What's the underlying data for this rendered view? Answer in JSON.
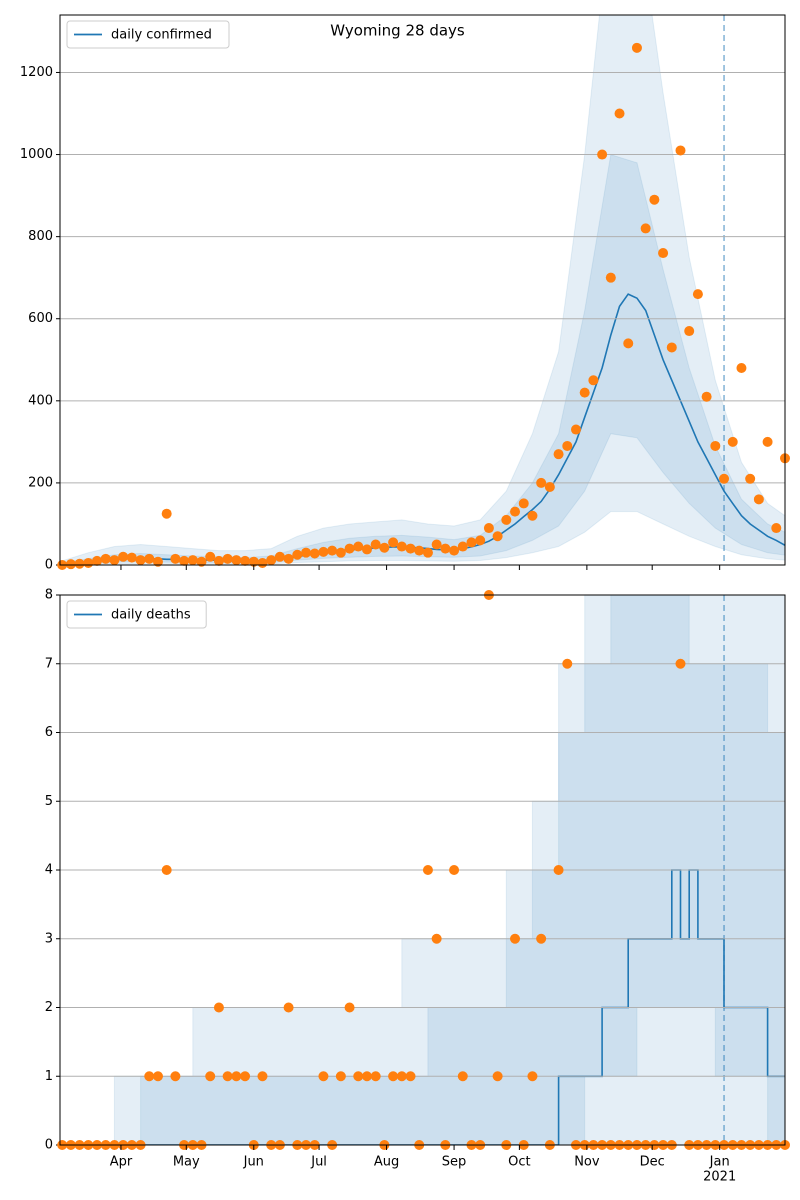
{
  "chart_data": [
    {
      "type": "line",
      "title": "Wyoming 28 days",
      "xlim": [
        3,
        336
      ],
      "ylim": [
        0,
        1340
      ],
      "yticks": [
        0,
        200,
        400,
        600,
        800,
        1000,
        1200
      ],
      "xticks": [
        {
          "value": 31,
          "label": "Apr"
        },
        {
          "value": 61,
          "label": "May"
        },
        {
          "value": 92,
          "label": "Jun"
        },
        {
          "value": 122,
          "label": "Jul"
        },
        {
          "value": 153,
          "label": "Aug"
        },
        {
          "value": 184,
          "label": "Sep"
        },
        {
          "value": 214,
          "label": "Oct"
        },
        {
          "value": 245,
          "label": "Nov"
        },
        {
          "value": 275,
          "label": "Dec"
        },
        {
          "value": 306,
          "label": "Jan"
        }
      ],
      "show_xtick_labels": false,
      "grid": true,
      "legend": "upper left",
      "vline": 308,
      "step": false,
      "x": [
        4,
        8,
        12,
        16,
        20,
        24,
        28,
        32,
        36,
        40,
        44,
        48,
        52,
        56,
        60,
        64,
        68,
        72,
        76,
        80,
        84,
        88,
        92,
        96,
        100,
        104,
        108,
        112,
        116,
        120,
        124,
        128,
        132,
        136,
        140,
        144,
        148,
        152,
        156,
        160,
        164,
        168,
        172,
        176,
        180,
        184,
        188,
        192,
        196,
        200,
        204,
        208,
        212,
        216,
        220,
        224,
        228,
        232,
        236,
        240,
        244,
        248,
        252,
        256,
        260,
        264,
        268,
        272,
        276,
        280,
        284,
        288,
        292,
        296,
        300,
        304,
        308,
        312,
        316,
        320,
        324,
        328,
        332,
        336
      ],
      "series": [
        {
          "name": "daily confirmed",
          "color": "#1f77b4",
          "values": [
            2,
            4,
            6,
            8,
            10,
            12,
            14,
            15,
            16,
            16,
            15,
            15,
            14,
            14,
            13,
            12,
            12,
            12,
            11,
            11,
            10,
            10,
            10,
            11,
            12,
            14,
            17,
            20,
            24,
            27,
            30,
            32,
            35,
            37,
            38,
            40,
            42,
            43,
            44,
            44,
            43,
            42,
            40,
            38,
            37,
            38,
            40,
            44,
            50,
            58,
            70,
            85,
            100,
            118,
            135,
            155,
            185,
            220,
            260,
            300,
            360,
            420,
            480,
            560,
            630,
            660,
            650,
            620,
            560,
            500,
            450,
            400,
            350,
            300,
            260,
            220,
            180,
            150,
            120,
            100,
            85,
            70,
            60,
            48
          ]
        }
      ],
      "points": {
        "color": "#ff7f0e",
        "values": [
          0,
          2,
          3,
          5,
          10,
          15,
          12,
          20,
          18,
          12,
          15,
          8,
          125,
          15,
          10,
          12,
          8,
          20,
          10,
          15,
          12,
          10,
          8,
          5,
          12,
          20,
          15,
          25,
          30,
          28,
          32,
          35,
          30,
          40,
          45,
          38,
          50,
          42,
          55,
          45,
          40,
          35,
          30,
          50,
          40,
          35,
          45,
          55,
          60,
          90,
          70,
          110,
          130,
          150,
          120,
          200,
          190,
          270,
          290,
          330,
          420,
          450,
          1000,
          700,
          1100,
          540,
          1260,
          820,
          890,
          760,
          530,
          1010,
          570,
          660,
          410,
          290,
          210,
          300,
          480,
          210,
          160,
          300,
          90,
          260
        ]
      },
      "band_x": [
        4,
        16,
        28,
        40,
        52,
        64,
        76,
        88,
        100,
        112,
        124,
        136,
        148,
        160,
        172,
        184,
        196,
        208,
        220,
        232,
        244,
        256,
        268,
        280,
        292,
        304,
        316,
        328,
        336
      ],
      "bands": [
        {
          "color": "#1f77b4",
          "lower": [
            0,
            1,
            3,
            4,
            4,
            3,
            3,
            3,
            3,
            6,
            8,
            10,
            11,
            11,
            10,
            9,
            11,
            18,
            30,
            45,
            80,
            130,
            130,
            100,
            70,
            45,
            25,
            15,
            12
          ],
          "upper": [
            10,
            30,
            45,
            50,
            45,
            40,
            35,
            35,
            40,
            70,
            90,
            100,
            105,
            110,
            100,
            95,
            110,
            180,
            320,
            520,
            1000,
            1600,
            1600,
            1150,
            750,
            450,
            250,
            150,
            120
          ]
        },
        {
          "color": "#1f77b4",
          "lower": [
            1,
            4,
            7,
            8,
            7,
            6,
            6,
            5,
            6,
            12,
            16,
            19,
            21,
            22,
            20,
            19,
            22,
            35,
            60,
            95,
            180,
            320,
            310,
            225,
            150,
            90,
            50,
            30,
            24
          ],
          "upper": [
            5,
            15,
            25,
            28,
            25,
            22,
            20,
            18,
            22,
            40,
            55,
            65,
            70,
            72,
            68,
            62,
            72,
            120,
            200,
            320,
            620,
            1000,
            980,
            720,
            480,
            290,
            160,
            100,
            80
          ]
        }
      ]
    },
    {
      "type": "line",
      "xlim": [
        3,
        336
      ],
      "ylim": [
        0,
        8
      ],
      "yticks": [
        0,
        1,
        2,
        3,
        4,
        5,
        6,
        7,
        8
      ],
      "xticks": [
        {
          "value": 31,
          "label": "Apr"
        },
        {
          "value": 61,
          "label": "May"
        },
        {
          "value": 92,
          "label": "Jun"
        },
        {
          "value": 122,
          "label": "Jul"
        },
        {
          "value": 153,
          "label": "Aug"
        },
        {
          "value": 184,
          "label": "Sep"
        },
        {
          "value": 214,
          "label": "Oct"
        },
        {
          "value": 245,
          "label": "Nov"
        },
        {
          "value": 275,
          "label": "Dec"
        },
        {
          "value": 306,
          "label": "Jan"
        }
      ],
      "year_label": "2021",
      "show_xtick_labels": true,
      "grid": true,
      "legend": "upper left",
      "vline": 308,
      "step": true,
      "x": [
        4,
        8,
        12,
        16,
        20,
        24,
        28,
        32,
        36,
        40,
        44,
        48,
        52,
        56,
        60,
        64,
        68,
        72,
        76,
        80,
        84,
        88,
        92,
        96,
        100,
        104,
        108,
        112,
        116,
        120,
        124,
        128,
        132,
        136,
        140,
        144,
        148,
        152,
        156,
        160,
        164,
        168,
        172,
        176,
        180,
        184,
        188,
        192,
        196,
        200,
        204,
        208,
        212,
        216,
        220,
        224,
        228,
        232,
        236,
        240,
        244,
        248,
        252,
        256,
        260,
        264,
        268,
        272,
        276,
        280,
        284,
        288,
        292,
        296,
        300,
        304,
        308,
        312,
        316,
        320,
        324,
        328,
        332,
        336
      ],
      "series": [
        {
          "name": "daily deaths",
          "color": "#1f77b4",
          "values": [
            0,
            0,
            0,
            0,
            0,
            0,
            0,
            0,
            0,
            0,
            0,
            0,
            0,
            0,
            0,
            0,
            0,
            0,
            0,
            0,
            0,
            0,
            0,
            0,
            0,
            0,
            0,
            0,
            0,
            0,
            0,
            0,
            0,
            0,
            0,
            0,
            0,
            0,
            0,
            0,
            0,
            0,
            0,
            0,
            0,
            0,
            0,
            0,
            0,
            0,
            0,
            0,
            0,
            0,
            0,
            0,
            0,
            1,
            1,
            1,
            1,
            1,
            2,
            2,
            2,
            3,
            3,
            3,
            3,
            3,
            4,
            3,
            4,
            3,
            3,
            3,
            2,
            2,
            2,
            2,
            2,
            1,
            1,
            1
          ]
        }
      ],
      "points": {
        "color": "#ff7f0e",
        "values": [
          0,
          0,
          0,
          0,
          0,
          0,
          0,
          0,
          0,
          0,
          1,
          1,
          4,
          1,
          0,
          0,
          0,
          1,
          2,
          1,
          1,
          1,
          0,
          1,
          0,
          0,
          2,
          0,
          0,
          0,
          1,
          0,
          1,
          2,
          1,
          1,
          1,
          0,
          1,
          1,
          1,
          0,
          4,
          3,
          0,
          4,
          1,
          0,
          0,
          8,
          1,
          0,
          3,
          0,
          1,
          3,
          0,
          4,
          7,
          0,
          0,
          0,
          0,
          0,
          0,
          0,
          0,
          0,
          0,
          0,
          0,
          7,
          0,
          0,
          0,
          0,
          0,
          0,
          0,
          0,
          0,
          0,
          0,
          0
        ]
      },
      "band_x": [
        4,
        16,
        28,
        40,
        52,
        64,
        76,
        88,
        100,
        112,
        124,
        136,
        148,
        160,
        172,
        184,
        196,
        208,
        220,
        232,
        244,
        256,
        268,
        280,
        292,
        304,
        316,
        328,
        336
      ],
      "bands": [
        {
          "color": "#1f77b4",
          "lower": [
            0,
            0,
            0,
            0,
            0,
            0,
            0,
            0,
            0,
            0,
            0,
            0,
            0,
            0,
            0,
            0,
            0,
            0,
            0,
            0,
            0,
            0,
            0,
            0,
            0,
            0,
            0,
            0,
            0
          ],
          "upper": [
            0,
            0,
            1,
            1,
            1,
            2,
            2,
            2,
            2,
            2,
            2,
            2,
            2,
            3,
            3,
            3,
            3,
            4,
            5,
            7,
            9,
            9,
            9,
            9,
            9,
            9,
            9,
            9,
            7
          ]
        },
        {
          "color": "#1f77b4",
          "lower": [
            0,
            0,
            0,
            0,
            0,
            0,
            0,
            0,
            0,
            0,
            0,
            0,
            0,
            0,
            0,
            0,
            0,
            0,
            0,
            0,
            1,
            1,
            2,
            2,
            2,
            1,
            1,
            0,
            0
          ],
          "upper": [
            0,
            0,
            0,
            1,
            1,
            1,
            1,
            1,
            1,
            1,
            1,
            1,
            1,
            1,
            2,
            2,
            2,
            3,
            4,
            6,
            7,
            8,
            8,
            8,
            7,
            7,
            7,
            6,
            5
          ]
        }
      ]
    }
  ]
}
